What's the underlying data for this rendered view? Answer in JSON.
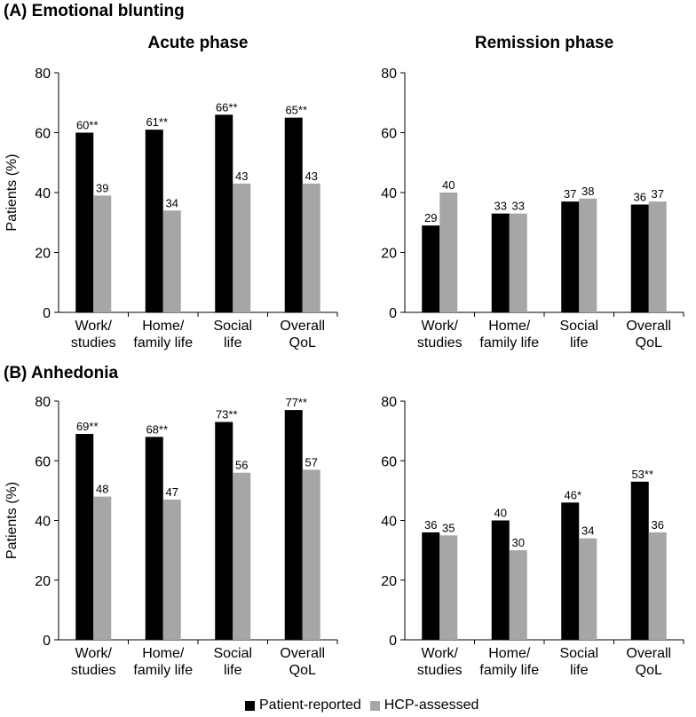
{
  "sections": [
    {
      "title": "(A) Emotional blunting"
    },
    {
      "title": "(B) Anhedonia"
    }
  ],
  "legend": {
    "patient_label": "Patient-reported",
    "hcp_label": "HCP-assessed",
    "patient_color": "#000000",
    "hcp_color": "#a6a6a6"
  },
  "chart_data": [
    {
      "type": "bar",
      "section": "(A) Emotional blunting",
      "title": "Acute phase",
      "ylabel": "Patients (%)",
      "ylim": [
        0,
        80
      ],
      "yticks": [
        0,
        20,
        40,
        60,
        80
      ],
      "categories": [
        [
          "Work/",
          "studies"
        ],
        [
          "Home/",
          "family life"
        ],
        [
          "Social",
          "life"
        ],
        [
          "Overall",
          "QoL"
        ]
      ],
      "series": [
        {
          "name": "Patient-reported",
          "values": [
            60,
            61,
            66,
            65
          ],
          "labels": [
            "60**",
            "61**",
            "66**",
            "65**"
          ]
        },
        {
          "name": "HCP-assessed",
          "values": [
            39,
            34,
            43,
            43
          ],
          "labels": [
            "39",
            "34",
            "43",
            "43"
          ]
        }
      ]
    },
    {
      "type": "bar",
      "section": "(A) Emotional blunting",
      "title": "Remission phase",
      "ylabel": "",
      "ylim": [
        0,
        80
      ],
      "yticks": [
        0,
        20,
        40,
        60,
        80
      ],
      "categories": [
        [
          "Work/",
          "studies"
        ],
        [
          "Home/",
          "family life"
        ],
        [
          "Social",
          "life"
        ],
        [
          "Overall",
          "QoL"
        ]
      ],
      "series": [
        {
          "name": "Patient-reported",
          "values": [
            29,
            33,
            37,
            36
          ],
          "labels": [
            "29",
            "33",
            "37",
            "36"
          ]
        },
        {
          "name": "HCP-assessed",
          "values": [
            40,
            33,
            38,
            37
          ],
          "labels": [
            "40",
            "33",
            "38",
            "37"
          ]
        }
      ]
    },
    {
      "type": "bar",
      "section": "(B) Anhedonia",
      "title": "",
      "ylabel": "Patients (%)",
      "ylim": [
        0,
        80
      ],
      "yticks": [
        0,
        20,
        40,
        60,
        80
      ],
      "categories": [
        [
          "Work/",
          "studies"
        ],
        [
          "Home/",
          "family life"
        ],
        [
          "Social",
          "life"
        ],
        [
          "Overall",
          "QoL"
        ]
      ],
      "series": [
        {
          "name": "Patient-reported",
          "values": [
            69,
            68,
            73,
            77
          ],
          "labels": [
            "69**",
            "68**",
            "73**",
            "77**"
          ]
        },
        {
          "name": "HCP-assessed",
          "values": [
            48,
            47,
            56,
            57
          ],
          "labels": [
            "48",
            "47",
            "56",
            "57"
          ]
        }
      ]
    },
    {
      "type": "bar",
      "section": "(B) Anhedonia",
      "title": "",
      "ylabel": "",
      "ylim": [
        0,
        80
      ],
      "yticks": [
        0,
        20,
        40,
        60,
        80
      ],
      "categories": [
        [
          "Work/",
          "studies"
        ],
        [
          "Home/",
          "family life"
        ],
        [
          "Social",
          "life"
        ],
        [
          "Overall",
          "QoL"
        ]
      ],
      "series": [
        {
          "name": "Patient-reported",
          "values": [
            36,
            40,
            46,
            53
          ],
          "labels": [
            "36",
            "40",
            "46*",
            "53**"
          ]
        },
        {
          "name": "HCP-assessed",
          "values": [
            35,
            30,
            34,
            36
          ],
          "labels": [
            "35",
            "30",
            "34",
            "36"
          ]
        }
      ]
    }
  ]
}
